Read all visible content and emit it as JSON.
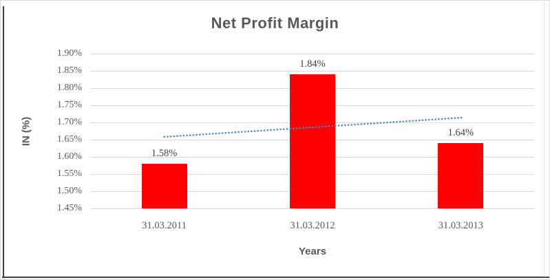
{
  "chart_data": {
    "type": "bar",
    "title": "Net Profit Margin",
    "xlabel": "Years",
    "ylabel": "IN (%)",
    "categories": [
      "31.03.2011",
      "31.03.2012",
      "31.03.2013"
    ],
    "values": [
      1.58,
      1.84,
      1.64
    ],
    "data_labels": [
      "1.58%",
      "1.84%",
      "1.64%"
    ],
    "yticks": [
      "1.90%",
      "1.85%",
      "1.80%",
      "1.75%",
      "1.70%",
      "1.65%",
      "1.60%",
      "1.55%",
      "1.50%",
      "1.45%"
    ],
    "ytick_values": [
      1.9,
      1.85,
      1.8,
      1.75,
      1.7,
      1.65,
      1.6,
      1.55,
      1.5,
      1.45
    ],
    "ylim": [
      1.45,
      1.9
    ],
    "grid": true,
    "legend": "none",
    "bar_color": "#FF0000",
    "gridline_color": "#D9D9D9",
    "text_color": "#595959",
    "data_label_color": "#404040",
    "trendline": {
      "style": "dotted",
      "color": "#4E86C8",
      "start_value": 1.658,
      "end_value": 1.714
    }
  }
}
